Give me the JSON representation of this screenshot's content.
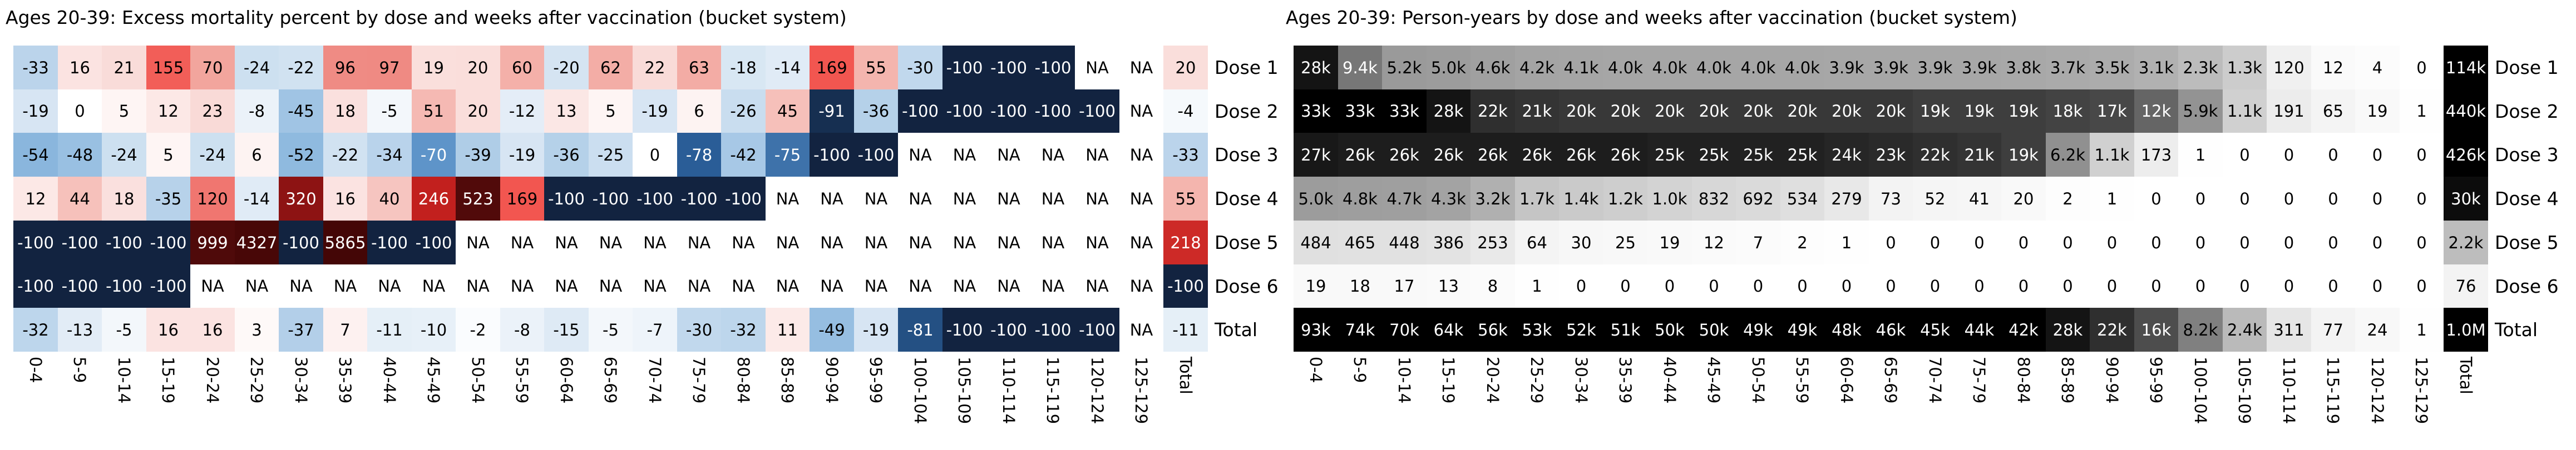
{
  "chart_data": [
    {
      "type": "heatmap",
      "title": "Ages 20-39: Excess mortality percent by dose and weeks after vaccination (bucket system)",
      "palette": "diverging-blue-white-red",
      "colors": {
        "negative_extreme": "#122340",
        "zero": "#ffffff",
        "positive_extreme": "#440606"
      },
      "xlabel_note": "weeks after vaccination buckets",
      "row_labels": [
        "Dose 1",
        "Dose 2",
        "Dose 3",
        "Dose 4",
        "Dose 5",
        "Dose 6",
        "Total"
      ],
      "col_labels": [
        "0-4",
        "5-9",
        "10-14",
        "15-19",
        "20-24",
        "25-29",
        "30-34",
        "35-39",
        "40-44",
        "45-49",
        "50-54",
        "55-59",
        "60-64",
        "65-69",
        "70-74",
        "75-79",
        "80-84",
        "85-89",
        "90-94",
        "95-99",
        "100-104",
        "105-109",
        "110-114",
        "115-119",
        "120-124",
        "125-129",
        "Total"
      ],
      "cells": [
        [
          "-33",
          "16",
          "21",
          "155",
          "70",
          "-24",
          "-22",
          "96",
          "97",
          "19",
          "20",
          "60",
          "-20",
          "62",
          "22",
          "63",
          "-18",
          "-14",
          "169",
          "55",
          "-30",
          "-100",
          "-100",
          "-100",
          "NA",
          "NA",
          "20"
        ],
        [
          "-19",
          "0",
          "5",
          "12",
          "23",
          "-8",
          "-45",
          "18",
          "-5",
          "51",
          "20",
          "-12",
          "13",
          "5",
          "-19",
          "6",
          "-26",
          "45",
          "-91",
          "-36",
          "-100",
          "-100",
          "-100",
          "-100",
          "-100",
          "NA",
          "-4"
        ],
        [
          "-54",
          "-48",
          "-24",
          "5",
          "-24",
          "6",
          "-52",
          "-22",
          "-34",
          "-70",
          "-39",
          "-19",
          "-36",
          "-25",
          "0",
          "-78",
          "-42",
          "-75",
          "-100",
          "-100",
          "NA",
          "NA",
          "NA",
          "NA",
          "NA",
          "NA",
          "-33"
        ],
        [
          "12",
          "44",
          "18",
          "-35",
          "120",
          "-14",
          "320",
          "16",
          "40",
          "246",
          "523",
          "169",
          "-100",
          "-100",
          "-100",
          "-100",
          "-100",
          "NA",
          "NA",
          "NA",
          "NA",
          "NA",
          "NA",
          "NA",
          "NA",
          "NA",
          "55"
        ],
        [
          "-100",
          "-100",
          "-100",
          "-100",
          "999",
          "4327",
          "-100",
          "5865",
          "-100",
          "-100",
          "NA",
          "NA",
          "NA",
          "NA",
          "NA",
          "NA",
          "NA",
          "NA",
          "NA",
          "NA",
          "NA",
          "NA",
          "NA",
          "NA",
          "NA",
          "NA",
          "218"
        ],
        [
          "-100",
          "-100",
          "-100",
          "-100",
          "NA",
          "NA",
          "NA",
          "NA",
          "NA",
          "NA",
          "NA",
          "NA",
          "NA",
          "NA",
          "NA",
          "NA",
          "NA",
          "NA",
          "NA",
          "NA",
          "NA",
          "NA",
          "NA",
          "NA",
          "NA",
          "NA",
          "-100"
        ],
        [
          "-32",
          "-13",
          "-5",
          "16",
          "16",
          "3",
          "-37",
          "7",
          "-11",
          "-10",
          "-2",
          "-8",
          "-15",
          "-5",
          "-7",
          "-30",
          "-32",
          "11",
          "-49",
          "-19",
          "-81",
          "-100",
          "-100",
          "-100",
          "-100",
          "NA",
          "-11"
        ]
      ]
    },
    {
      "type": "heatmap",
      "title": "Ages 20-39: Person-years by dose and weeks after vaccination (bucket system)",
      "palette": "grayscale-dark-high",
      "colors": {
        "min": "#ffffff",
        "max": "#000000"
      },
      "xlabel_note": "weeks after vaccination buckets",
      "row_labels": [
        "Dose 1",
        "Dose 2",
        "Dose 3",
        "Dose 4",
        "Dose 5",
        "Dose 6",
        "Total"
      ],
      "col_labels": [
        "0-4",
        "5-9",
        "10-14",
        "15-19",
        "20-24",
        "25-29",
        "30-34",
        "35-39",
        "40-44",
        "45-49",
        "50-54",
        "55-59",
        "60-64",
        "65-69",
        "70-74",
        "75-79",
        "80-84",
        "85-89",
        "90-94",
        "95-99",
        "100-104",
        "105-109",
        "110-114",
        "115-119",
        "120-124",
        "125-129",
        "Total"
      ],
      "cells": [
        [
          "28k",
          "9.4k",
          "5.2k",
          "5.0k",
          "4.6k",
          "4.2k",
          "4.1k",
          "4.0k",
          "4.0k",
          "4.0k",
          "4.0k",
          "4.0k",
          "3.9k",
          "3.9k",
          "3.9k",
          "3.9k",
          "3.8k",
          "3.7k",
          "3.5k",
          "3.1k",
          "2.3k",
          "1.3k",
          "120",
          "12",
          "4",
          "0",
          "114k"
        ],
        [
          "33k",
          "33k",
          "33k",
          "28k",
          "22k",
          "21k",
          "20k",
          "20k",
          "20k",
          "20k",
          "20k",
          "20k",
          "20k",
          "20k",
          "19k",
          "19k",
          "19k",
          "18k",
          "17k",
          "12k",
          "5.9k",
          "1.1k",
          "191",
          "65",
          "19",
          "1",
          "440k"
        ],
        [
          "27k",
          "26k",
          "26k",
          "26k",
          "26k",
          "26k",
          "26k",
          "26k",
          "25k",
          "25k",
          "25k",
          "25k",
          "24k",
          "23k",
          "22k",
          "21k",
          "19k",
          "6.2k",
          "1.1k",
          "173",
          "1",
          "0",
          "0",
          "0",
          "0",
          "0",
          "426k"
        ],
        [
          "5.0k",
          "4.8k",
          "4.7k",
          "4.3k",
          "3.2k",
          "1.7k",
          "1.4k",
          "1.2k",
          "1.0k",
          "832",
          "692",
          "534",
          "279",
          "73",
          "52",
          "41",
          "20",
          "2",
          "1",
          "0",
          "0",
          "0",
          "0",
          "0",
          "0",
          "0",
          "30k"
        ],
        [
          "484",
          "465",
          "448",
          "386",
          "253",
          "64",
          "30",
          "25",
          "19",
          "12",
          "7",
          "2",
          "1",
          "0",
          "0",
          "0",
          "0",
          "0",
          "0",
          "0",
          "0",
          "0",
          "0",
          "0",
          "0",
          "0",
          "2.2k"
        ],
        [
          "19",
          "18",
          "17",
          "13",
          "8",
          "1",
          "0",
          "0",
          "0",
          "0",
          "0",
          "0",
          "0",
          "0",
          "0",
          "0",
          "0",
          "0",
          "0",
          "0",
          "0",
          "0",
          "0",
          "0",
          "0",
          "0",
          "76"
        ],
        [
          "93k",
          "74k",
          "70k",
          "64k",
          "56k",
          "53k",
          "52k",
          "51k",
          "50k",
          "50k",
          "49k",
          "49k",
          "48k",
          "46k",
          "45k",
          "44k",
          "42k",
          "28k",
          "22k",
          "16k",
          "8.2k",
          "2.4k",
          "311",
          "77",
          "24",
          "1",
          "1.0M"
        ]
      ]
    }
  ]
}
